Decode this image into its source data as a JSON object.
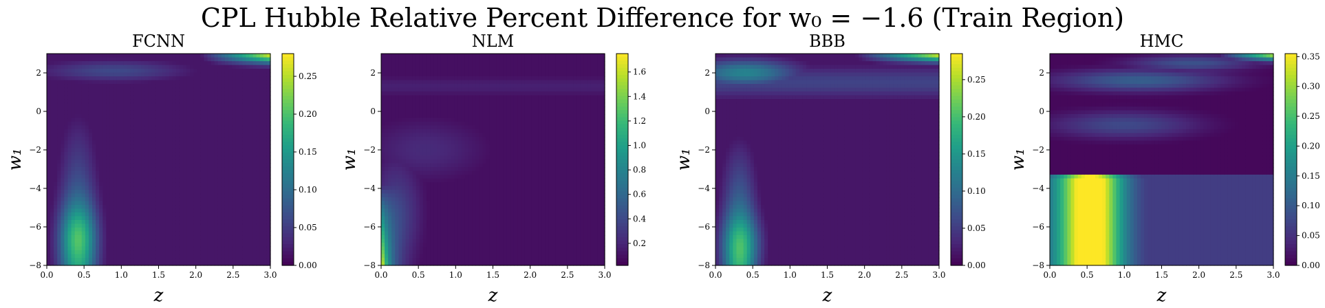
{
  "title": "CPL Hubble Relative Percent Difference for w₀ = −1.6 (Train Region)",
  "chart_data": [
    {
      "type": "heatmap",
      "title": "FCNN",
      "xlabel": "z",
      "ylabel": "w₁",
      "xlim": [
        0,
        3
      ],
      "ylim": [
        -8,
        3
      ],
      "xticks": [
        "0.0",
        "0.5",
        "1.0",
        "1.5",
        "2.0",
        "2.5",
        "3.0"
      ],
      "yticks": [
        "−8",
        "−6",
        "−4",
        "−2",
        "0",
        "2"
      ],
      "colorbar": {
        "min": 0,
        "max": 0.28,
        "ticks": [
          "0.00",
          "0.05",
          "0.10",
          "0.15",
          "0.20",
          "0.25"
        ]
      },
      "colormap": "viridis"
    },
    {
      "type": "heatmap",
      "title": "NLM",
      "xlabel": "z",
      "ylabel": "w₁",
      "xlim": [
        0,
        3
      ],
      "ylim": [
        -8,
        3
      ],
      "xticks": [
        "0.0",
        "0.5",
        "1.0",
        "1.5",
        "2.0",
        "2.5",
        "3.0"
      ],
      "yticks": [
        "−8",
        "−6",
        "−4",
        "−2",
        "0",
        "2"
      ],
      "colorbar": {
        "min": 0.02,
        "max": 1.75,
        "ticks": [
          "0.2",
          "0.4",
          "0.6",
          "0.8",
          "1.0",
          "1.2",
          "1.4",
          "1.6"
        ]
      },
      "colormap": "viridis"
    },
    {
      "type": "heatmap",
      "title": "BBB",
      "xlabel": "z",
      "ylabel": "w₁",
      "xlim": [
        0,
        3
      ],
      "ylim": [
        -8,
        3
      ],
      "xticks": [
        "0.0",
        "0.5",
        "1.0",
        "1.5",
        "2.0",
        "2.5",
        "3.0"
      ],
      "yticks": [
        "−8",
        "−6",
        "−4",
        "−2",
        "0",
        "2"
      ],
      "colorbar": {
        "min": 0,
        "max": 0.285,
        "ticks": [
          "0.00",
          "0.05",
          "0.10",
          "0.15",
          "0.20",
          "0.25"
        ]
      },
      "colormap": "viridis"
    },
    {
      "type": "heatmap",
      "title": "HMC",
      "xlabel": "z",
      "ylabel": "w₁",
      "xlim": [
        0,
        3
      ],
      "ylim": [
        -8,
        3
      ],
      "xticks": [
        "0.0",
        "0.5",
        "1.0",
        "1.5",
        "2.0",
        "2.5",
        "3.0"
      ],
      "yticks": [
        "−8",
        "−6",
        "−4",
        "−2",
        "0",
        "2"
      ],
      "colorbar": {
        "min": 0,
        "max": 0.355,
        "ticks": [
          "0.00",
          "0.05",
          "0.10",
          "0.15",
          "0.20",
          "0.25",
          "0.30",
          "0.35"
        ]
      },
      "colormap": "viridis"
    }
  ]
}
